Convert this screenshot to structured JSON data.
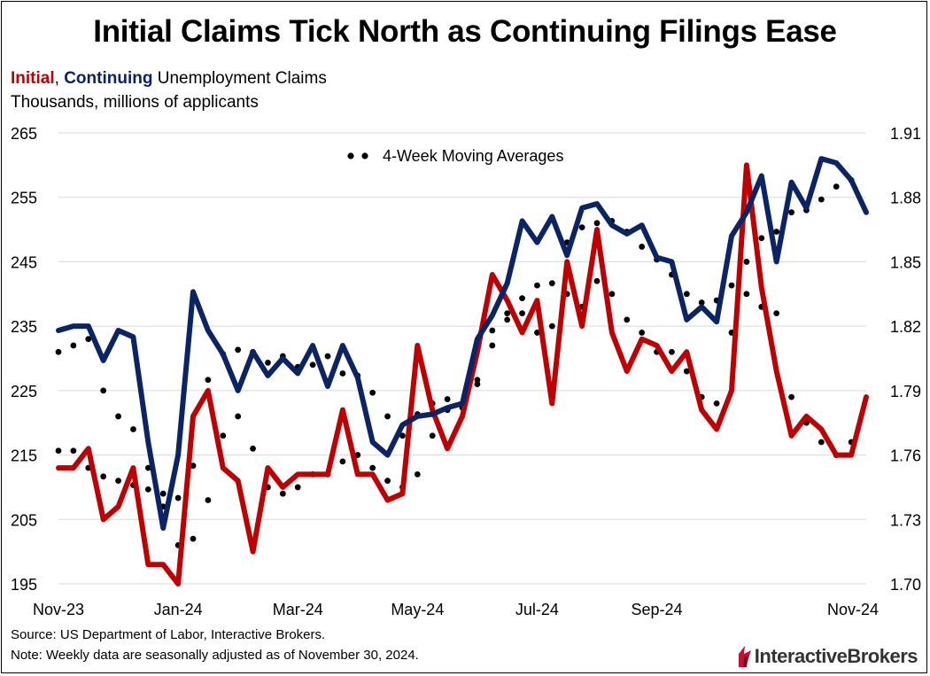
{
  "title": "Initial Claims Tick North as Continuing Filings Ease",
  "subtitle": {
    "initial": "Initial",
    "sep": ",",
    "continuing": "Continuing",
    "rest": " Unemployment Claims"
  },
  "subtitle2": "Thousands, millions of applicants",
  "source": "Source: US Department of Labor, Interactive Brokers.",
  "note": "Note: Weekly data are seasonally adjusted as of November 30, 2024.",
  "logo": {
    "brand1": "Interactive",
    "brand2": "Brokers"
  },
  "colors": {
    "initial": "#c00000",
    "continuing": "#0a2466",
    "ma": "#000000"
  },
  "chart_data": {
    "type": "line",
    "legend": "4-Week Moving Averages",
    "x_tick_labels": [
      "Nov-23",
      "Jan-24",
      "Mar-24",
      "May-24",
      "Jul-24",
      "Sep-24",
      "Nov-24"
    ],
    "x_tick_index": [
      0,
      8,
      16,
      24,
      32,
      40,
      48
    ],
    "left_axis": {
      "min": 195,
      "max": 265,
      "ticks": [
        "195",
        "205",
        "215",
        "225",
        "235",
        "245",
        "255",
        "265"
      ]
    },
    "right_axis": {
      "min": 1.7,
      "max": 1.91,
      "ticks": [
        "1.70",
        "1.73",
        "1.76",
        "1.79",
        "1.82",
        "1.85",
        "1.88",
        "1.91"
      ]
    },
    "grid": true,
    "series": [
      {
        "name": "Initial",
        "axis": "left",
        "style": "solid",
        "values": [
          213,
          213,
          216,
          205,
          207,
          213,
          198,
          198,
          195,
          221,
          225,
          213,
          211,
          200,
          213,
          210,
          212,
          212,
          212,
          222,
          212,
          212,
          208,
          209,
          232,
          222,
          216,
          221,
          231,
          243,
          239,
          234,
          239,
          223,
          245,
          235,
          250,
          234,
          228,
          233,
          232,
          228,
          231,
          222,
          219,
          225,
          260,
          241,
          228,
          218,
          221,
          219,
          215,
          215,
          224
        ]
      },
      {
        "name": "Continuing",
        "axis": "right",
        "style": "solid",
        "values": [
          1.818,
          1.82,
          1.82,
          1.804,
          1.818,
          1.815,
          1.766,
          1.726,
          1.76,
          1.836,
          1.818,
          1.807,
          1.79,
          1.808,
          1.797,
          1.805,
          1.798,
          1.811,
          1.792,
          1.811,
          1.796,
          1.766,
          1.76,
          1.774,
          1.778,
          1.779,
          1.782,
          1.784,
          1.814,
          1.825,
          1.84,
          1.869,
          1.859,
          1.871,
          1.853,
          1.875,
          1.877,
          1.867,
          1.863,
          1.867,
          1.852,
          1.85,
          1.823,
          1.829,
          1.822,
          1.862,
          1.873,
          1.89,
          1.85,
          1.887,
          1.875,
          1.898,
          1.896,
          1.888,
          1.873
        ]
      },
      {
        "name": "Initial 4-Week MA",
        "axis": "left",
        "style": "dotted",
        "values": [
          231,
          232,
          233,
          225,
          221,
          219,
          213,
          207,
          201,
          202,
          208,
          218,
          221,
          216,
          210,
          209,
          210,
          212,
          212,
          214,
          215,
          213,
          211,
          210,
          212,
          218,
          222,
          223,
          226,
          232,
          236,
          237,
          234,
          235,
          240,
          238,
          242,
          240,
          236,
          234,
          231,
          231,
          228,
          224,
          223,
          234,
          240,
          238,
          237,
          224,
          220,
          217,
          215,
          217
        ]
      },
      {
        "name": "Continuing 4-Week MA",
        "axis": "right",
        "style": "dotted",
        "values": [
          1.762,
          1.762,
          1.754,
          1.75,
          1.748,
          1.746,
          1.744,
          1.742,
          1.74,
          1.755,
          1.795,
          1.807,
          1.809,
          1.808,
          1.803,
          1.806,
          1.801,
          1.802,
          1.806,
          1.798,
          1.797,
          1.789,
          1.778,
          1.769,
          1.779,
          1.784,
          1.786,
          1.782,
          1.795,
          1.818,
          1.826,
          1.833,
          1.839,
          1.84,
          1.859,
          1.866,
          1.868,
          1.869,
          1.864,
          1.857,
          1.851,
          1.844,
          1.835,
          1.831,
          1.832,
          1.839,
          1.85,
          1.861,
          1.864,
          1.873,
          1.874,
          1.879,
          1.885,
          1.888
        ]
      }
    ]
  }
}
